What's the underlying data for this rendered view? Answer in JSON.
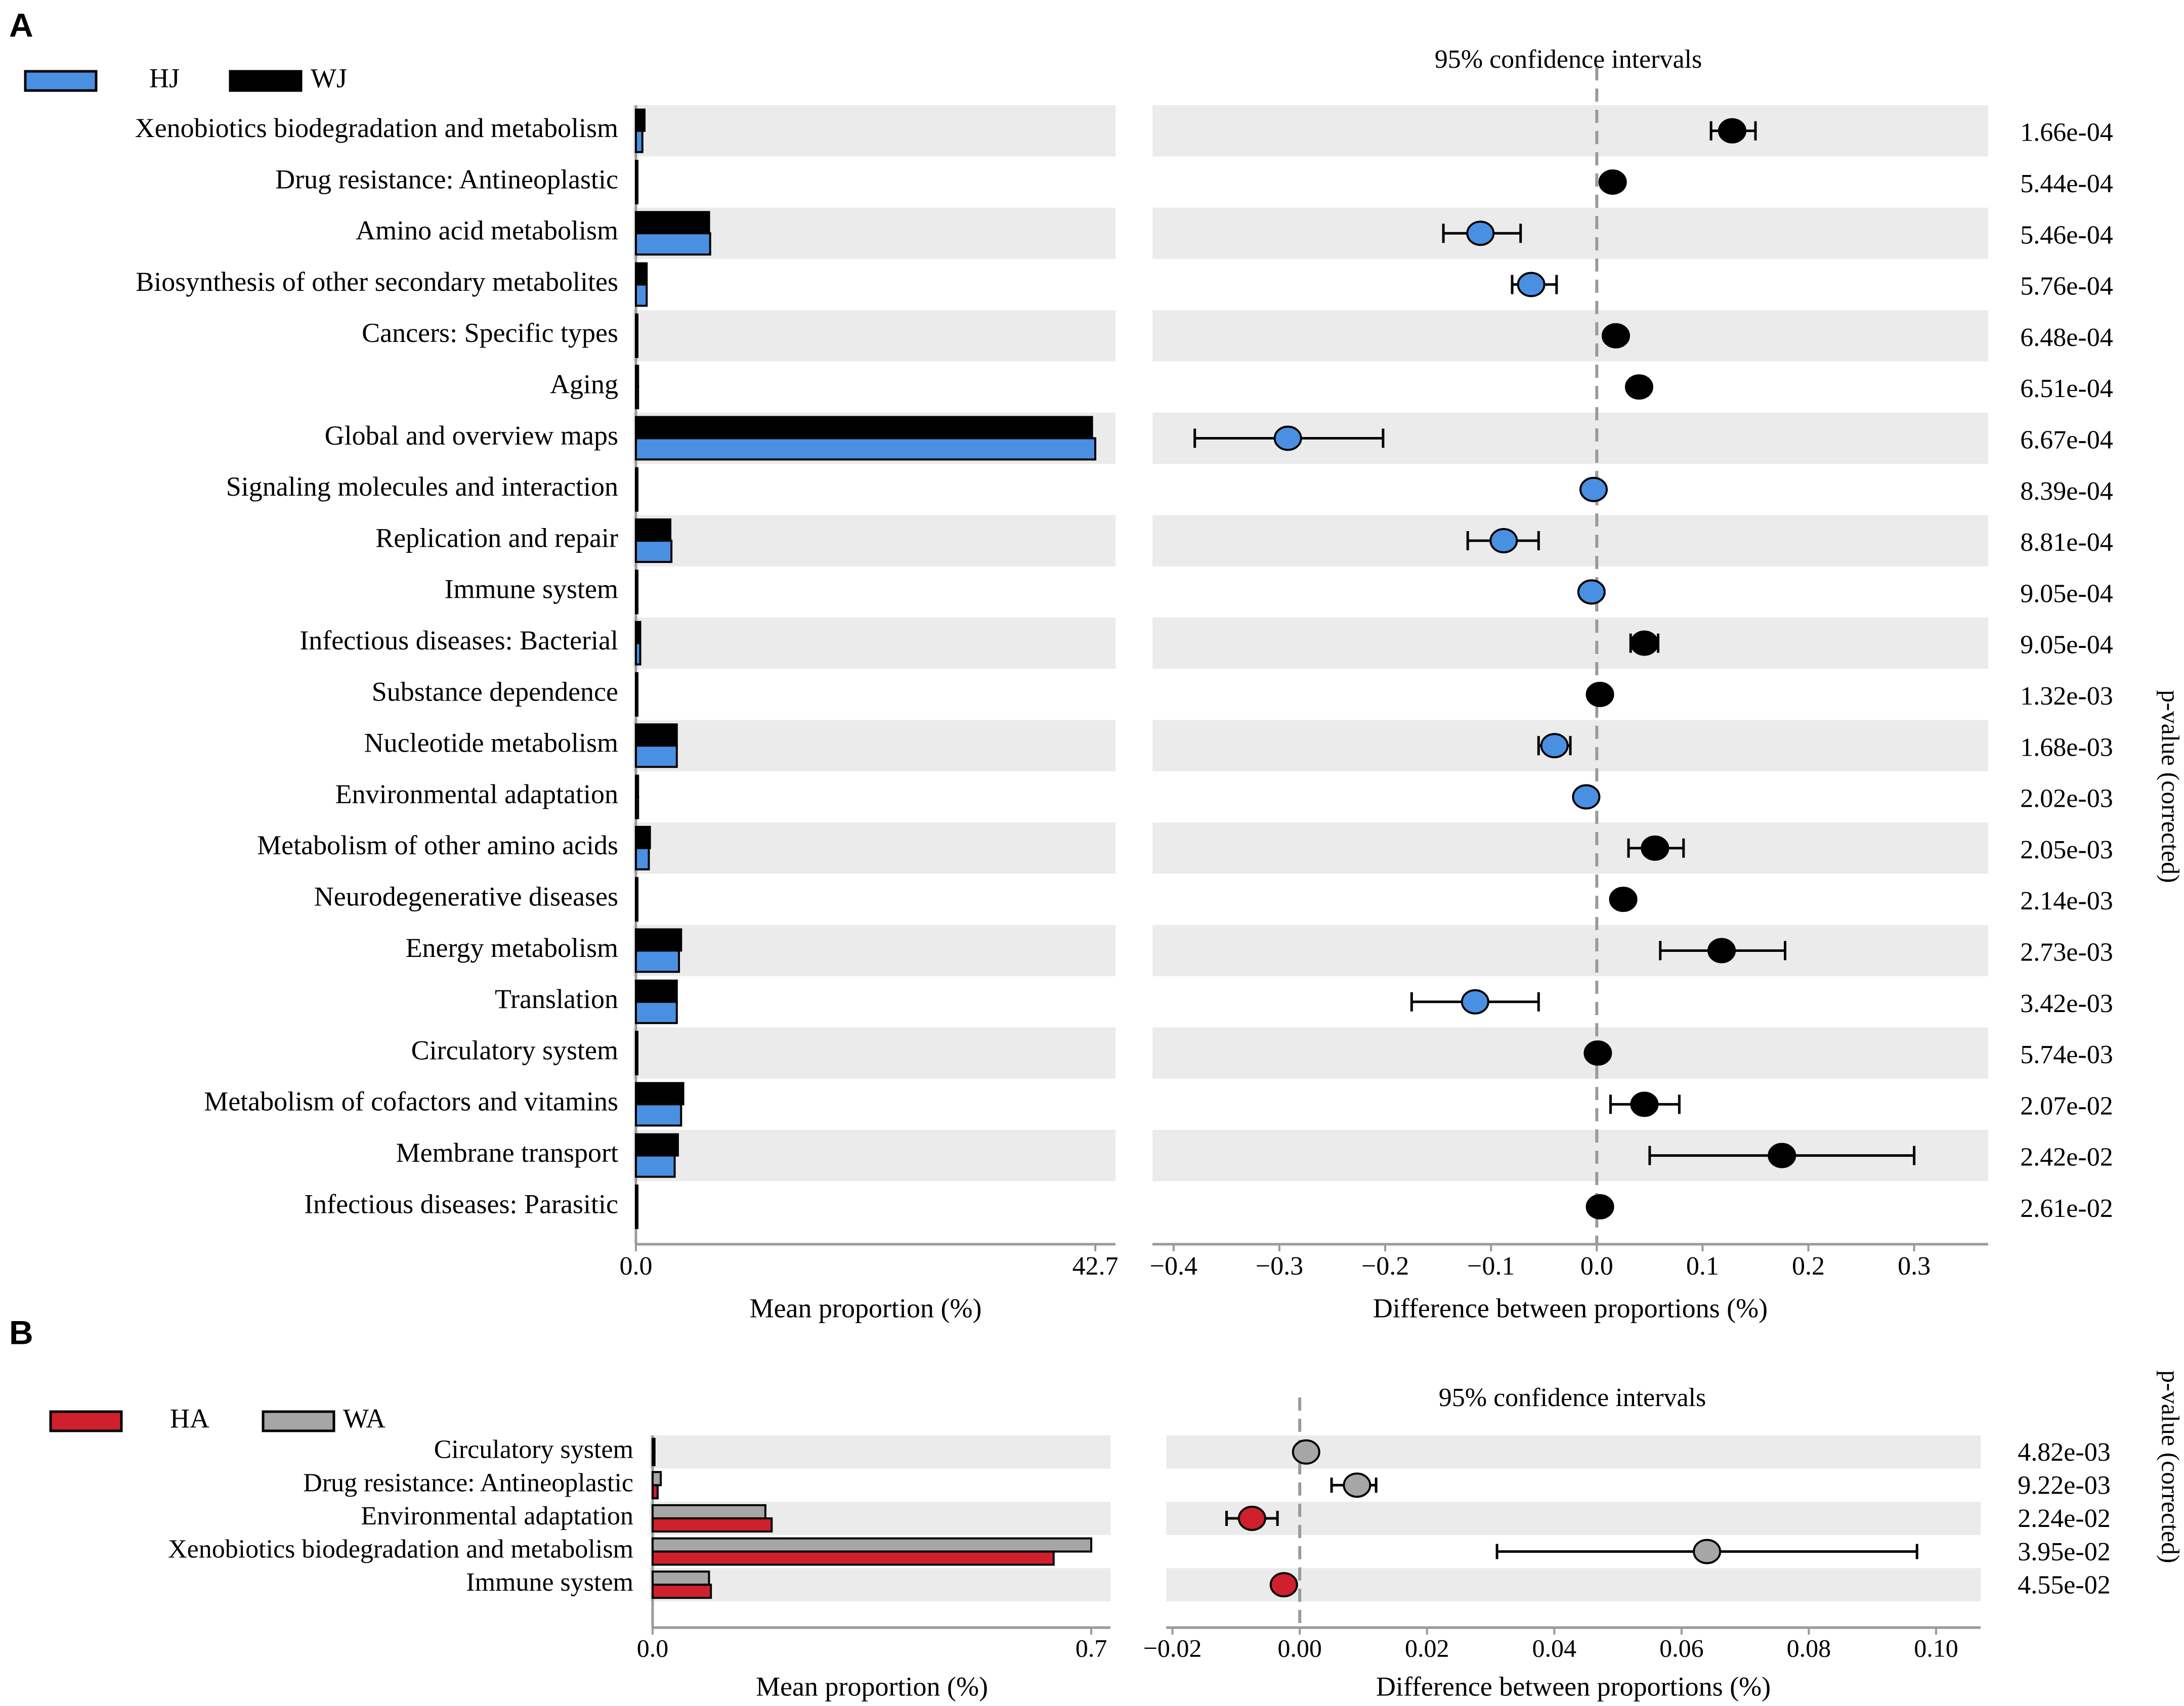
{
  "chart_data": [
    {
      "panel_label": "A",
      "type": "extended_error_bar",
      "legend": [
        {
          "name": "HJ",
          "color": "#4a90e2"
        },
        {
          "name": "WJ",
          "color": "#000000"
        }
      ],
      "ci_title": "95% confidence intervals",
      "bar_xlabel": "Mean proportion (%)",
      "bar_ticks": [
        "0.0",
        "42.7"
      ],
      "bar_max": 42.7,
      "diff_xlabel": "Difference between proportions (%)",
      "diff_range": [
        -0.42,
        0.37
      ],
      "diff_ticks": [
        -0.4,
        -0.3,
        -0.2,
        -0.1,
        0.0,
        0.1,
        0.2,
        0.3
      ],
      "diff_tick_labels": [
        "−0.4",
        "−0.3",
        "−0.2",
        "−0.1",
        "0.0",
        "0.1",
        "0.2",
        "0.3"
      ],
      "pvalue_label": "p-value (corrected)",
      "rows": [
        {
          "label": "Xenobiotics biodegradation and metabolism",
          "hj": 0.6,
          "wj": 0.8,
          "diff": 0.128,
          "lo": 0.108,
          "hi": 0.15,
          "group": "WJ",
          "p": "1.66e-04"
        },
        {
          "label": "Drug resistance: Antineoplastic",
          "hj": 0.1,
          "wj": 0.1,
          "diff": 0.015,
          "lo": 0.015,
          "hi": 0.015,
          "group": "WJ",
          "p": "5.44e-04"
        },
        {
          "label": "Amino acid metabolism",
          "hj": 6.9,
          "wj": 6.8,
          "diff": -0.11,
          "lo": -0.145,
          "hi": -0.072,
          "group": "HJ",
          "p": "5.46e-04"
        },
        {
          "label": "Biosynthesis of other secondary metabolites",
          "hj": 1.0,
          "wj": 1.0,
          "diff": -0.062,
          "lo": -0.08,
          "hi": -0.038,
          "group": "HJ",
          "p": "5.76e-04"
        },
        {
          "label": "Cancers: Specific types",
          "hj": 0.1,
          "wj": 0.1,
          "diff": 0.018,
          "lo": 0.018,
          "hi": 0.018,
          "group": "WJ",
          "p": "6.48e-04"
        },
        {
          "label": "Aging",
          "hj": 0.2,
          "wj": 0.2,
          "diff": 0.04,
          "lo": 0.032,
          "hi": 0.048,
          "group": "WJ",
          "p": "6.51e-04"
        },
        {
          "label": "Global and overview maps",
          "hj": 42.7,
          "wj": 42.4,
          "diff": -0.292,
          "lo": -0.38,
          "hi": -0.202,
          "group": "HJ",
          "p": "6.67e-04"
        },
        {
          "label": "Signaling molecules and interaction",
          "hj": 0.1,
          "wj": 0.1,
          "diff": -0.003,
          "lo": -0.003,
          "hi": -0.003,
          "group": "HJ",
          "p": "8.39e-04"
        },
        {
          "label": "Replication and repair",
          "hj": 3.3,
          "wj": 3.2,
          "diff": -0.088,
          "lo": -0.122,
          "hi": -0.055,
          "group": "HJ",
          "p": "8.81e-04"
        },
        {
          "label": "Immune system",
          "hj": 0.1,
          "wj": 0.1,
          "diff": -0.005,
          "lo": -0.005,
          "hi": -0.005,
          "group": "HJ",
          "p": "9.05e-04"
        },
        {
          "label": "Infectious diseases: Bacterial",
          "hj": 0.4,
          "wj": 0.4,
          "diff": 0.045,
          "lo": 0.032,
          "hi": 0.058,
          "group": "WJ",
          "p": "9.05e-04"
        },
        {
          "label": "Substance dependence",
          "hj": 0.1,
          "wj": 0.1,
          "diff": 0.003,
          "lo": 0.003,
          "hi": 0.003,
          "group": "WJ",
          "p": "1.32e-03"
        },
        {
          "label": "Nucleotide metabolism",
          "hj": 3.8,
          "wj": 3.8,
          "diff": -0.04,
          "lo": -0.055,
          "hi": -0.025,
          "group": "HJ",
          "p": "1.68e-03"
        },
        {
          "label": "Environmental adaptation",
          "hj": 0.2,
          "wj": 0.2,
          "diff": -0.01,
          "lo": -0.01,
          "hi": -0.01,
          "group": "HJ",
          "p": "2.02e-03"
        },
        {
          "label": "Metabolism of other amino acids",
          "hj": 1.2,
          "wj": 1.3,
          "diff": 0.055,
          "lo": 0.03,
          "hi": 0.082,
          "group": "WJ",
          "p": "2.05e-03"
        },
        {
          "label": "Neurodegenerative diseases",
          "hj": 0.1,
          "wj": 0.1,
          "diff": 0.025,
          "lo": 0.018,
          "hi": 0.032,
          "group": "WJ",
          "p": "2.14e-03"
        },
        {
          "label": "Energy metabolism",
          "hj": 4.0,
          "wj": 4.2,
          "diff": 0.118,
          "lo": 0.06,
          "hi": 0.178,
          "group": "WJ",
          "p": "2.73e-03"
        },
        {
          "label": "Translation",
          "hj": 3.8,
          "wj": 3.8,
          "diff": -0.115,
          "lo": -0.175,
          "hi": -0.055,
          "group": "HJ",
          "p": "3.42e-03"
        },
        {
          "label": "Circulatory system",
          "hj": 0.1,
          "wj": 0.1,
          "diff": 0.001,
          "lo": 0.001,
          "hi": 0.001,
          "group": "WJ",
          "p": "5.74e-03"
        },
        {
          "label": "Metabolism of cofactors and vitamins",
          "hj": 4.2,
          "wj": 4.4,
          "diff": 0.045,
          "lo": 0.013,
          "hi": 0.078,
          "group": "WJ",
          "p": "2.07e-02"
        },
        {
          "label": "Membrane transport",
          "hj": 3.6,
          "wj": 3.9,
          "diff": 0.175,
          "lo": 0.05,
          "hi": 0.3,
          "group": "WJ",
          "p": "2.42e-02"
        },
        {
          "label": "Infectious diseases: Parasitic",
          "hj": 0.1,
          "wj": 0.1,
          "diff": 0.003,
          "lo": 0.003,
          "hi": 0.003,
          "group": "WJ",
          "p": "2.61e-02"
        }
      ]
    },
    {
      "panel_label": "B",
      "type": "extended_error_bar",
      "legend": [
        {
          "name": "HA",
          "color": "#d0202e"
        },
        {
          "name": "WA",
          "color": "#a6a6a6"
        }
      ],
      "ci_title": "95% confidence intervals",
      "bar_xlabel": "Mean proportion (%)",
      "bar_ticks": [
        "0.0",
        "0.7"
      ],
      "bar_max": 0.7,
      "diff_xlabel": "Difference between proportions (%)",
      "diff_range": [
        -0.021,
        0.107
      ],
      "diff_ticks": [
        -0.02,
        0.0,
        0.02,
        0.04,
        0.06,
        0.08,
        0.1
      ],
      "diff_tick_labels": [
        "−0.02",
        "0.00",
        "0.02",
        "0.04",
        "0.06",
        "0.08",
        "0.10"
      ],
      "pvalue_label": "p-value (corrected)",
      "rows": [
        {
          "label": "Circulatory system",
          "ha": 0.003,
          "wa": 0.003,
          "diff": 0.001,
          "lo": 0.001,
          "hi": 0.001,
          "group": "WA",
          "p": "4.82e-03"
        },
        {
          "label": "Drug resistance: Antineoplastic",
          "ha": 0.008,
          "wa": 0.013,
          "diff": 0.009,
          "lo": 0.005,
          "hi": 0.012,
          "group": "WA",
          "p": "9.22e-03"
        },
        {
          "label": "Environmental adaptation",
          "ha": 0.19,
          "wa": 0.18,
          "diff": -0.0075,
          "lo": -0.0115,
          "hi": -0.0035,
          "group": "HA",
          "p": "2.24e-02"
        },
        {
          "label": "Xenobiotics biodegradation and metabolism",
          "ha": 0.64,
          "wa": 0.7,
          "diff": 0.064,
          "lo": 0.031,
          "hi": 0.097,
          "group": "WA",
          "p": "3.95e-02"
        },
        {
          "label": "Immune system",
          "ha": 0.093,
          "wa": 0.09,
          "diff": -0.0025,
          "lo": -0.0025,
          "hi": -0.0025,
          "group": "HA",
          "p": "4.55e-02"
        }
      ]
    }
  ]
}
